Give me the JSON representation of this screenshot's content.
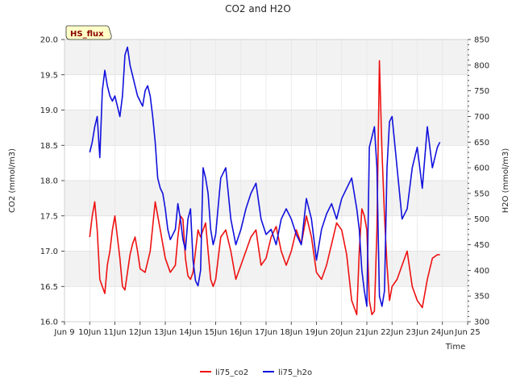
{
  "chart_data": {
    "type": "line",
    "title": "CO2 and H2O",
    "xlabel": "Time",
    "ylabel_left": "CO2 (mmol/m3)",
    "ylabel_right": "H2O (mmol/m3)",
    "badge": "HS_flux",
    "colors": {
      "li75_co2": "#ee1111",
      "li75_h2o": "#1111dd",
      "band": "#f2f2f2",
      "badge_bg": "#ffffc8"
    },
    "x_range": [
      9,
      25
    ],
    "x_ticks": [
      9,
      10,
      11,
      12,
      13,
      14,
      15,
      16,
      17,
      18,
      19,
      20,
      21,
      22,
      23,
      24,
      25
    ],
    "x_tick_labels": [
      "Jun 9",
      "10Jun",
      "11Jun",
      "12Jun",
      "13Jun",
      "14Jun",
      "15Jun",
      "16Jun",
      "17Jun",
      "18Jun",
      "19Jun",
      "20Jun",
      "21Jun",
      "22Jun",
      "23Jun",
      "24Jun",
      "Jun 25"
    ],
    "ylim_left": [
      16.0,
      20.0
    ],
    "y_ticks_left": [
      16.0,
      16.5,
      17.0,
      17.5,
      18.0,
      18.5,
      19.0,
      19.5,
      20.0
    ],
    "y_tick_labels_left": [
      "16.0",
      "16.5",
      "17.0",
      "17.5",
      "18.0",
      "18.5",
      "19.0",
      "19.5",
      "20.0"
    ],
    "ylim_right": [
      300,
      850
    ],
    "y_ticks_right": [
      300,
      350,
      400,
      450,
      500,
      550,
      600,
      650,
      700,
      750,
      800,
      850
    ],
    "y_tick_labels_right": [
      "300",
      "350",
      "400",
      "450",
      "500",
      "550",
      "600",
      "650",
      "700",
      "750",
      "800",
      "850"
    ],
    "grid": true,
    "legend": {
      "position": "bottom-center",
      "entries": [
        "li75_co2",
        "li75_h2o"
      ]
    },
    "series": [
      {
        "name": "li75_co2",
        "axis": "left",
        "x": [
          10.0,
          10.1,
          10.2,
          10.3,
          10.4,
          10.5,
          10.6,
          10.7,
          10.8,
          10.9,
          11.0,
          11.1,
          11.2,
          11.3,
          11.4,
          11.5,
          11.6,
          11.7,
          11.8,
          11.9,
          12.0,
          12.2,
          12.4,
          12.6,
          12.8,
          13.0,
          13.2,
          13.4,
          13.5,
          13.6,
          13.7,
          13.8,
          13.9,
          14.0,
          14.1,
          14.2,
          14.3,
          14.4,
          14.5,
          14.6,
          14.7,
          14.8,
          14.9,
          15.0,
          15.2,
          15.4,
          15.6,
          15.8,
          16.0,
          16.2,
          16.4,
          16.6,
          16.8,
          17.0,
          17.2,
          17.4,
          17.6,
          17.8,
          18.0,
          18.2,
          18.4,
          18.6,
          18.8,
          19.0,
          19.2,
          19.4,
          19.6,
          19.8,
          20.0,
          20.2,
          20.4,
          20.6,
          20.7,
          20.8,
          20.9,
          21.0,
          21.1,
          21.2,
          21.3,
          21.4,
          21.5,
          21.6,
          21.7,
          21.8,
          21.9,
          22.0,
          22.2,
          22.4,
          22.6,
          22.8,
          23.0,
          23.2,
          23.4,
          23.6,
          23.8,
          23.9
        ],
        "values": [
          17.2,
          17.5,
          17.7,
          17.3,
          16.6,
          16.5,
          16.4,
          16.8,
          17.0,
          17.3,
          17.5,
          17.2,
          16.9,
          16.5,
          16.45,
          16.7,
          16.95,
          17.1,
          17.2,
          17.0,
          16.75,
          16.7,
          17.0,
          17.7,
          17.3,
          16.9,
          16.7,
          16.8,
          17.2,
          17.5,
          17.45,
          16.9,
          16.65,
          16.6,
          16.7,
          17.0,
          17.3,
          17.2,
          17.3,
          17.4,
          17.0,
          16.6,
          16.5,
          16.6,
          17.2,
          17.3,
          17.0,
          16.6,
          16.8,
          17.0,
          17.2,
          17.3,
          16.8,
          16.9,
          17.2,
          17.35,
          17.0,
          16.8,
          17.0,
          17.3,
          17.1,
          17.5,
          17.2,
          16.7,
          16.6,
          16.8,
          17.1,
          17.4,
          17.3,
          16.95,
          16.3,
          16.1,
          17.0,
          17.6,
          17.5,
          17.3,
          16.3,
          16.1,
          16.15,
          17.3,
          19.7,
          18.4,
          17.5,
          16.8,
          16.3,
          16.5,
          16.6,
          16.8,
          17.0,
          16.5,
          16.3,
          16.2,
          16.6,
          16.9,
          16.95,
          16.95
        ]
      },
      {
        "name": "li75_h2o",
        "axis": "right",
        "x": [
          10.0,
          10.1,
          10.2,
          10.3,
          10.4,
          10.5,
          10.6,
          10.7,
          10.8,
          10.9,
          11.0,
          11.1,
          11.2,
          11.3,
          11.4,
          11.5,
          11.6,
          11.7,
          11.8,
          11.9,
          12.0,
          12.1,
          12.2,
          12.3,
          12.4,
          12.5,
          12.6,
          12.7,
          12.8,
          12.9,
          13.0,
          13.1,
          13.2,
          13.3,
          13.4,
          13.5,
          13.6,
          13.7,
          13.8,
          13.9,
          14.0,
          14.1,
          14.2,
          14.3,
          14.4,
          14.5,
          14.6,
          14.7,
          14.8,
          14.9,
          15.0,
          15.2,
          15.4,
          15.6,
          15.8,
          16.0,
          16.2,
          16.4,
          16.6,
          16.8,
          17.0,
          17.2,
          17.4,
          17.6,
          17.8,
          18.0,
          18.2,
          18.4,
          18.6,
          18.8,
          19.0,
          19.2,
          19.4,
          19.6,
          19.8,
          20.0,
          20.2,
          20.4,
          20.6,
          20.7,
          20.8,
          20.9,
          21.0,
          21.1,
          21.2,
          21.3,
          21.4,
          21.5,
          21.6,
          21.7,
          21.8,
          21.9,
          22.0,
          22.2,
          22.4,
          22.6,
          22.8,
          23.0,
          23.2,
          23.4,
          23.6,
          23.8,
          23.9
        ],
        "values": [
          630,
          650,
          680,
          700,
          620,
          750,
          790,
          760,
          740,
          730,
          740,
          720,
          700,
          740,
          820,
          835,
          800,
          780,
          760,
          740,
          730,
          720,
          750,
          760,
          740,
          700,
          650,
          580,
          560,
          550,
          520,
          480,
          460,
          470,
          480,
          530,
          500,
          460,
          440,
          500,
          520,
          420,
          380,
          370,
          400,
          600,
          580,
          550,
          480,
          450,
          470,
          580,
          600,
          500,
          450,
          480,
          520,
          550,
          570,
          500,
          470,
          480,
          450,
          500,
          520,
          500,
          470,
          450,
          540,
          500,
          420,
          480,
          510,
          530,
          500,
          540,
          560,
          580,
          520,
          480,
          400,
          360,
          330,
          640,
          660,
          680,
          600,
          350,
          330,
          360,
          600,
          690,
          700,
          600,
          500,
          520,
          600,
          640,
          560,
          680,
          600,
          640,
          650
        ]
      }
    ]
  }
}
